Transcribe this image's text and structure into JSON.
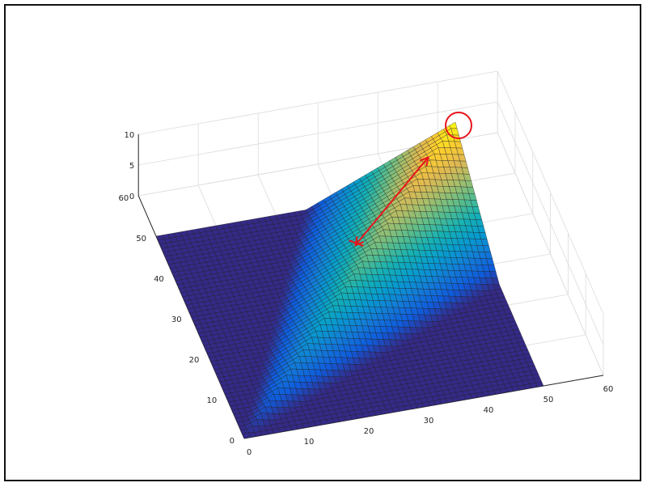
{
  "chart_data": {
    "type": "surface",
    "title": "",
    "xlabel": "",
    "ylabel": "",
    "zlabel": "",
    "xlim": [
      0,
      60
    ],
    "ylim": [
      0,
      60
    ],
    "zlim": [
      0,
      10
    ],
    "x_ticks": [
      "0",
      "10",
      "20",
      "30",
      "40",
      "50",
      "60"
    ],
    "y_ticks": [
      "0",
      "10",
      "20",
      "30",
      "40",
      "50",
      "60"
    ],
    "z_ticks": [
      "0",
      "5",
      "10"
    ],
    "grid": true,
    "colormap": "parula",
    "surface": {
      "x_range": [
        0,
        50
      ],
      "y_range": [
        0,
        50
      ],
      "grid_points": 51,
      "description_values": {
        "ridge_line": {
          "from": [
            0,
            0,
            0
          ],
          "to": [
            50,
            50,
            10
          ]
        },
        "peak": {
          "x": 50,
          "y": 50,
          "z": 10
        },
        "flat_level": 0
      }
    },
    "annotations": [
      {
        "type": "circle",
        "color": "#e8141b",
        "at": [
          50,
          50,
          10
        ]
      },
      {
        "type": "double-arrow",
        "color": "#e8141b",
        "from": [
          28,
          32,
          5.6
        ],
        "to": [
          44,
          45,
          8.6
        ]
      }
    ]
  }
}
